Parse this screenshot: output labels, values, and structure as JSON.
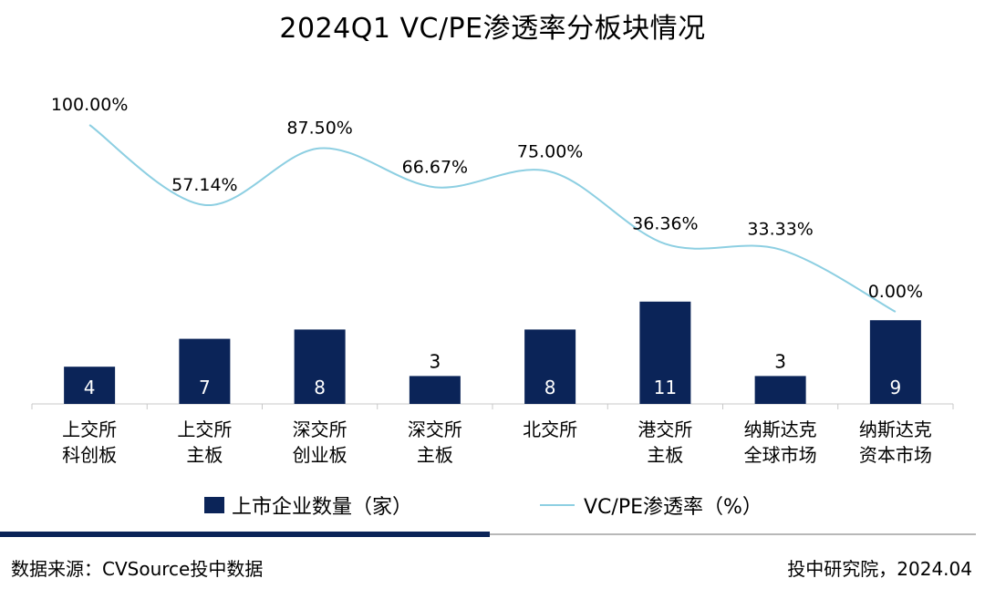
{
  "chart_data": {
    "type": "bar",
    "title": "2024Q1 VC/PE渗透率分板块情况",
    "categories": [
      [
        "上交所",
        "科创板"
      ],
      [
        "上交所",
        "主板"
      ],
      [
        "深交所",
        "创业板"
      ],
      [
        "深交所",
        "主板"
      ],
      [
        "北交所"
      ],
      [
        "港交所",
        "主板"
      ],
      [
        "纳斯达克",
        "全球市场"
      ],
      [
        "纳斯达克",
        "资本市场"
      ]
    ],
    "series": [
      {
        "name": "上市企业数量（家）",
        "type": "bar",
        "values": [
          4,
          7,
          8,
          3,
          8,
          11,
          3,
          9
        ],
        "color": "#0b2458"
      },
      {
        "name": "VC/PE渗透率（%）",
        "type": "line",
        "values": [
          100.0,
          57.14,
          87.5,
          66.67,
          75.0,
          36.36,
          33.33,
          0.0
        ],
        "color": "#8dcfe2"
      }
    ],
    "bar_labels": [
      "4",
      "7",
      "8",
      "3",
      "8",
      "11",
      "3",
      "9"
    ],
    "line_labels": [
      "100.00%",
      "57.14%",
      "87.50%",
      "66.67%",
      "75.00%",
      "36.36%",
      "33.33%",
      "0.00%"
    ],
    "legend_position": "bottom",
    "grid": false
  },
  "footer": {
    "source": "数据来源：CVSource投中数据",
    "credit": "投中研究院，2024.04"
  }
}
